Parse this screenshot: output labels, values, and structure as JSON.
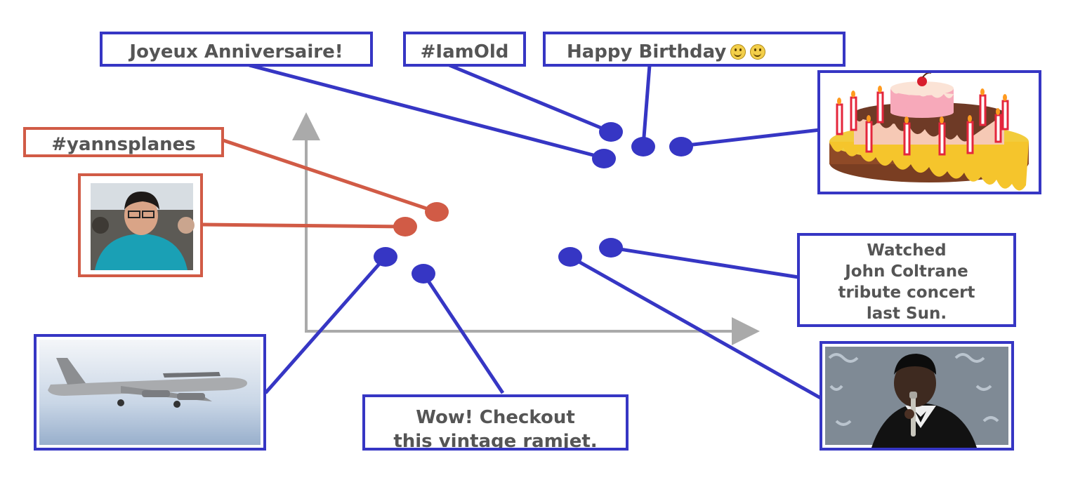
{
  "labels": {
    "joyeux": "Joyeux Anniversaire!",
    "iamold": "#IamOld",
    "happy": "Happy Birthday",
    "yanns": "#yannsplanes",
    "coltrane": "Watched\nJohn Coltrane\ntribute concert\nlast Sun.",
    "ramjet": "Wow! Checkout\nthis vintage ramjet."
  },
  "icons": [
    "smiley-icon",
    "smiley-icon"
  ],
  "colors": {
    "blue": "#3636c4",
    "red": "#d15b46",
    "axis": "#aaaaaa",
    "label_text": "#555555"
  }
}
